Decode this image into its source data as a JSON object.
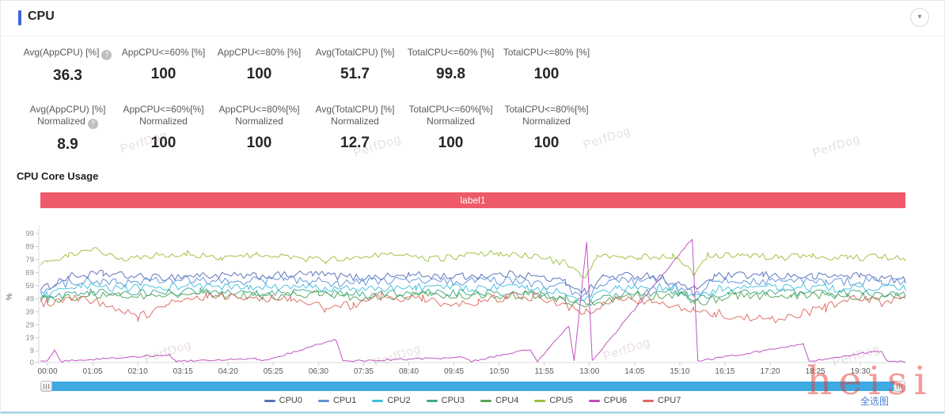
{
  "header": {
    "title": "CPU"
  },
  "stats": {
    "row1": [
      {
        "label": "Avg(AppCPU) [%]",
        "value": "36.3",
        "help": true
      },
      {
        "label": "AppCPU<=60% [%]",
        "value": "100",
        "help": false
      },
      {
        "label": "AppCPU<=80% [%]",
        "value": "100",
        "help": false
      },
      {
        "label": "Avg(TotalCPU) [%]",
        "value": "51.7",
        "help": false
      },
      {
        "label": "TotalCPU<=60% [%]",
        "value": "99.8",
        "help": false
      },
      {
        "label": "TotalCPU<=80% [%]",
        "value": "100",
        "help": false
      }
    ],
    "row2": [
      {
        "label": "Avg(AppCPU) [%]",
        "label2": "Normalized",
        "value": "8.9",
        "help": true
      },
      {
        "label": "AppCPU<=60%[%]",
        "label2": "Normalized",
        "value": "100",
        "help": false
      },
      {
        "label": "AppCPU<=80%[%]",
        "label2": "Normalized",
        "value": "100",
        "help": false
      },
      {
        "label": "Avg(TotalCPU) [%]",
        "label2": "Normalized",
        "value": "12.7",
        "help": false
      },
      {
        "label": "TotalCPU<=60%[%]",
        "label2": "Normalized",
        "value": "100",
        "help": false
      },
      {
        "label": "TotalCPU<=80%[%]",
        "label2": "Normalized",
        "value": "100",
        "help": false
      }
    ]
  },
  "section": {
    "title": "CPU Core Usage",
    "banner_label": "label1",
    "banner_color": "#EE5A6A"
  },
  "scrollbar": {
    "color": "#3FA9E1"
  },
  "footer": {
    "select_all_label": "全选图"
  },
  "watermarks": {
    "brand": "PerfDog",
    "overlay": "heisi"
  },
  "chart_data": {
    "type": "line",
    "title": "CPU Core Usage",
    "ylabel": "%",
    "ylim": [
      0,
      105
    ],
    "yticks": [
      0,
      9,
      19,
      29,
      39,
      49,
      59,
      69,
      79,
      89,
      99
    ],
    "xticks": [
      "00:00",
      "01:05",
      "02:10",
      "03:15",
      "04:20",
      "05:25",
      "06:30",
      "07:35",
      "08:40",
      "09:45",
      "10:50",
      "11:55",
      "13:00",
      "14:05",
      "15:10",
      "16:15",
      "17:20",
      "18:25",
      "19:30"
    ],
    "x_seconds_per_tick": 65,
    "x_range_seconds": [
      0,
      1235
    ],
    "grid": false,
    "legend_position": "bottom",
    "series": [
      {
        "name": "CPU0",
        "color": "#5a6fb8",
        "jitter": 3.0,
        "points": [
          [
            0,
            58
          ],
          [
            30,
            66
          ],
          [
            80,
            68
          ],
          [
            150,
            65
          ],
          [
            220,
            67
          ],
          [
            300,
            66
          ],
          [
            380,
            68
          ],
          [
            450,
            65
          ],
          [
            520,
            67
          ],
          [
            600,
            66
          ],
          [
            680,
            68
          ],
          [
            745,
            62
          ],
          [
            775,
            54
          ],
          [
            800,
            66
          ],
          [
            870,
            67
          ],
          [
            930,
            56
          ],
          [
            960,
            66
          ],
          [
            1030,
            67
          ],
          [
            1100,
            66
          ],
          [
            1170,
            67
          ],
          [
            1235,
            63
          ]
        ]
      },
      {
        "name": "CPU1",
        "color": "#5e92d8",
        "jitter": 3.5,
        "points": [
          [
            0,
            56
          ],
          [
            40,
            63
          ],
          [
            100,
            61
          ],
          [
            180,
            63
          ],
          [
            260,
            62
          ],
          [
            340,
            64
          ],
          [
            420,
            61
          ],
          [
            500,
            63
          ],
          [
            580,
            62
          ],
          [
            660,
            63
          ],
          [
            745,
            58
          ],
          [
            775,
            50
          ],
          [
            810,
            62
          ],
          [
            880,
            63
          ],
          [
            930,
            52
          ],
          [
            960,
            62
          ],
          [
            1040,
            63
          ],
          [
            1120,
            62
          ],
          [
            1200,
            63
          ],
          [
            1235,
            60
          ]
        ]
      },
      {
        "name": "CPU2",
        "color": "#44bfdd",
        "jitter": 3.0,
        "points": [
          [
            0,
            52
          ],
          [
            50,
            58
          ],
          [
            130,
            57
          ],
          [
            210,
            59
          ],
          [
            290,
            57
          ],
          [
            370,
            58
          ],
          [
            450,
            56
          ],
          [
            530,
            58
          ],
          [
            610,
            57
          ],
          [
            690,
            58
          ],
          [
            745,
            54
          ],
          [
            775,
            48
          ],
          [
            820,
            57
          ],
          [
            900,
            58
          ],
          [
            930,
            50
          ],
          [
            970,
            57
          ],
          [
            1050,
            58
          ],
          [
            1130,
            57
          ],
          [
            1235,
            57
          ]
        ]
      },
      {
        "name": "CPU3",
        "color": "#3da88e",
        "jitter": 2.8,
        "points": [
          [
            0,
            50
          ],
          [
            60,
            54
          ],
          [
            140,
            53
          ],
          [
            220,
            55
          ],
          [
            300,
            53
          ],
          [
            380,
            54
          ],
          [
            460,
            52
          ],
          [
            540,
            54
          ],
          [
            620,
            53
          ],
          [
            700,
            54
          ],
          [
            745,
            50
          ],
          [
            775,
            46
          ],
          [
            830,
            53
          ],
          [
            910,
            54
          ],
          [
            930,
            48
          ],
          [
            980,
            53
          ],
          [
            1060,
            54
          ],
          [
            1140,
            53
          ],
          [
            1235,
            53
          ]
        ]
      },
      {
        "name": "CPU4",
        "color": "#52a356",
        "jitter": 3.2,
        "points": [
          [
            0,
            48
          ],
          [
            70,
            52
          ],
          [
            150,
            51
          ],
          [
            230,
            53
          ],
          [
            310,
            51
          ],
          [
            390,
            52
          ],
          [
            470,
            50
          ],
          [
            550,
            52
          ],
          [
            630,
            51
          ],
          [
            710,
            52
          ],
          [
            745,
            48
          ],
          [
            775,
            44
          ],
          [
            840,
            51
          ],
          [
            920,
            52
          ],
          [
            930,
            46
          ],
          [
            990,
            51
          ],
          [
            1070,
            52
          ],
          [
            1150,
            51
          ],
          [
            1235,
            51
          ]
        ]
      },
      {
        "name": "CPU5",
        "color": "#9cc13c",
        "jitter": 2.5,
        "points": [
          [
            0,
            77
          ],
          [
            30,
            83
          ],
          [
            70,
            87
          ],
          [
            110,
            79
          ],
          [
            150,
            82
          ],
          [
            200,
            84
          ],
          [
            250,
            80
          ],
          [
            300,
            83
          ],
          [
            350,
            81
          ],
          [
            400,
            78
          ],
          [
            450,
            82
          ],
          [
            500,
            83
          ],
          [
            550,
            79
          ],
          [
            600,
            82
          ],
          [
            650,
            84
          ],
          [
            700,
            82
          ],
          [
            745,
            76
          ],
          [
            775,
            65
          ],
          [
            790,
            82
          ],
          [
            850,
            81
          ],
          [
            900,
            82
          ],
          [
            930,
            68
          ],
          [
            950,
            82
          ],
          [
            1000,
            83
          ],
          [
            1050,
            80
          ],
          [
            1100,
            82
          ],
          [
            1150,
            80
          ],
          [
            1200,
            81
          ],
          [
            1235,
            80
          ]
        ]
      },
      {
        "name": "CPU6",
        "color": "#bd4dbd",
        "jitter": 0.7,
        "floor": 0.3,
        "points": [
          [
            0,
            1
          ],
          [
            10,
            9
          ],
          [
            20,
            1
          ],
          [
            175,
            6
          ],
          [
            185,
            1
          ],
          [
            300,
            3
          ],
          [
            310,
            1
          ],
          [
            415,
            18
          ],
          [
            425,
            1
          ],
          [
            600,
            4
          ],
          [
            610,
            1
          ],
          [
            695,
            10
          ],
          [
            705,
            1
          ],
          [
            750,
            28
          ],
          [
            758,
            1
          ],
          [
            776,
            93
          ],
          [
            784,
            1
          ],
          [
            928,
            95
          ],
          [
            936,
            1
          ],
          [
            1088,
            14
          ],
          [
            1096,
            1
          ],
          [
            1200,
            9
          ],
          [
            1208,
            1
          ],
          [
            1235,
            1
          ]
        ]
      },
      {
        "name": "CPU7",
        "color": "#dd6a60",
        "jitter": 3.5,
        "points": [
          [
            0,
            46
          ],
          [
            40,
            50
          ],
          [
            90,
            44
          ],
          [
            130,
            34
          ],
          [
            170,
            44
          ],
          [
            230,
            50
          ],
          [
            290,
            51
          ],
          [
            350,
            48
          ],
          [
            400,
            42
          ],
          [
            440,
            44
          ],
          [
            480,
            51
          ],
          [
            540,
            49
          ],
          [
            580,
            44
          ],
          [
            620,
            47
          ],
          [
            660,
            50
          ],
          [
            700,
            51
          ],
          [
            745,
            44
          ],
          [
            775,
            38
          ],
          [
            820,
            50
          ],
          [
            870,
            47
          ],
          [
            930,
            40
          ],
          [
            960,
            38
          ],
          [
            1000,
            34
          ],
          [
            1040,
            33
          ],
          [
            1080,
            37
          ],
          [
            1120,
            42
          ],
          [
            1160,
            50
          ],
          [
            1200,
            46
          ],
          [
            1235,
            49
          ]
        ]
      }
    ]
  }
}
